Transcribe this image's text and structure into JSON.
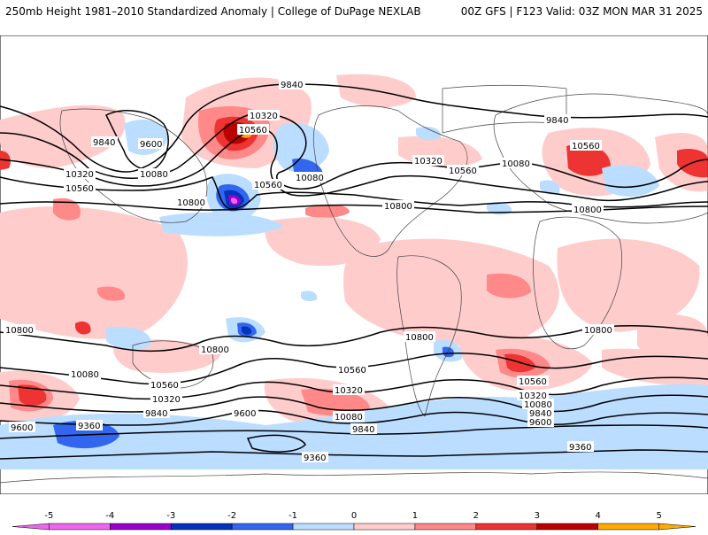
{
  "header": {
    "left": "250mb Height 1981–2010 Standardized Anomaly | College of DuPage NEXLAB",
    "right": "00Z GFS | F123 Valid: 03Z MON MAR 31 2025"
  },
  "colorbar": {
    "ticks": [
      "-5",
      "-4",
      "-3",
      "-2",
      "-1",
      "0",
      "1",
      "2",
      "3",
      "4",
      "5"
    ],
    "colors": [
      "#ee66ee",
      "#9900cc",
      "#0033bb",
      "#3366ee",
      "#bbddff",
      "#ffffff",
      "#ffcccc",
      "#ff8888",
      "#ee3333",
      "#bb0000",
      "#ffaa00"
    ]
  },
  "contour_labels": {
    "l01": "9840",
    "l02": "9840",
    "l03": "9600",
    "l04": "10320",
    "l05": "10560",
    "l06": "10080",
    "l07": "10320",
    "l08": "10560",
    "l09": "10080",
    "l10": "10800",
    "l11": "10560",
    "l12": "10320",
    "l13": "10560",
    "l14": "10080",
    "l15": "10800",
    "l16": "9840",
    "l17": "10560",
    "l18": "10800",
    "l19": "10800",
    "l20": "10800",
    "l21": "10800",
    "l22": "10800",
    "l23": "10080",
    "l24": "10560",
    "l25": "10320",
    "l26": "9840",
    "l27": "9600",
    "l28": "9600",
    "l29": "9360",
    "l30": "10560",
    "l31": "10320",
    "l32": "10080",
    "l33": "9840",
    "l34": "10560",
    "l35": "10320",
    "l36": "10080",
    "l37": "9840",
    "l38": "9600",
    "l39": "9360",
    "l40": "9360"
  }
}
